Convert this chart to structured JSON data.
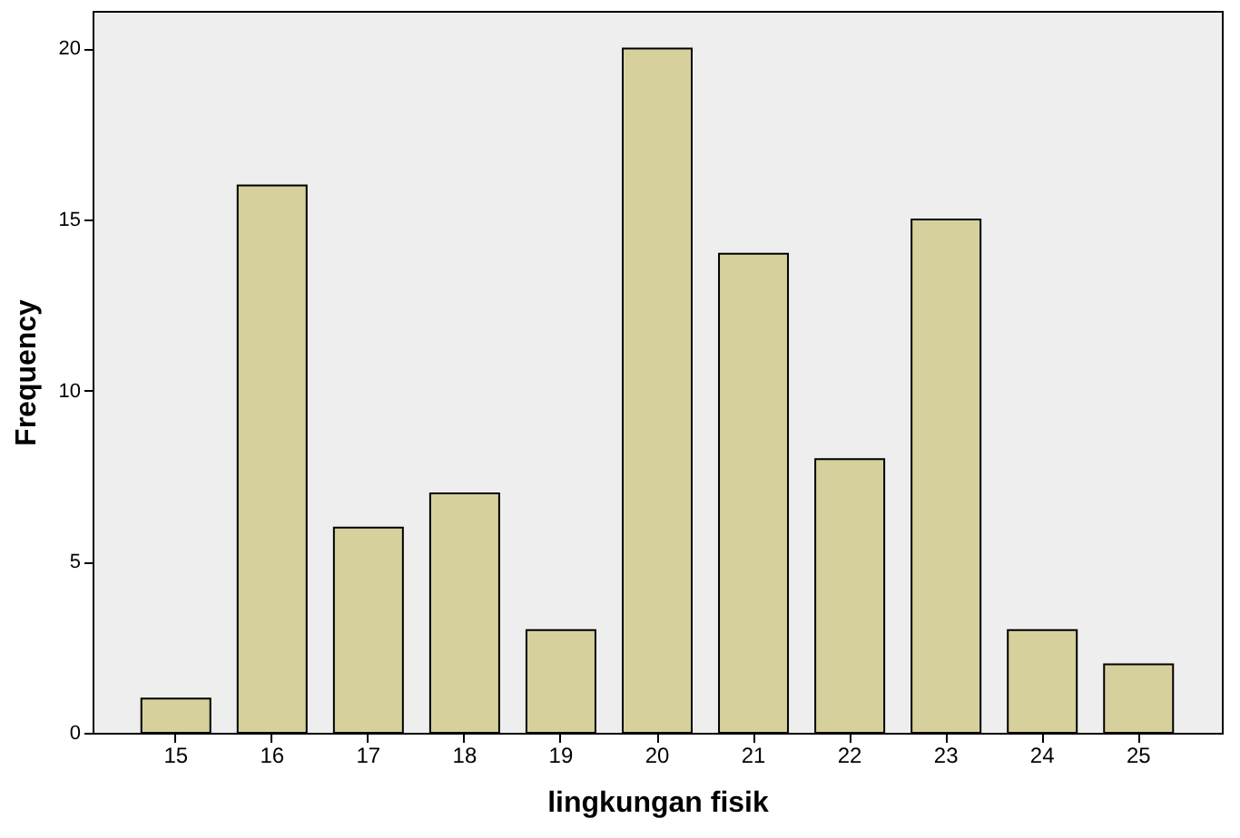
{
  "chart_data": {
    "type": "bar",
    "xlabel": "lingkungan fisik",
    "ylabel": "Frequency",
    "categories": [
      "15",
      "16",
      "17",
      "18",
      "19",
      "20",
      "21",
      "22",
      "23",
      "24",
      "25"
    ],
    "values": [
      1,
      16,
      6,
      7,
      3,
      20,
      14,
      8,
      15,
      3,
      2
    ],
    "color": "#d6d19c",
    "ylim": [
      0,
      21.1
    ],
    "yticks": [
      0,
      5,
      10,
      15,
      20
    ],
    "grid": false,
    "legend": false
  }
}
